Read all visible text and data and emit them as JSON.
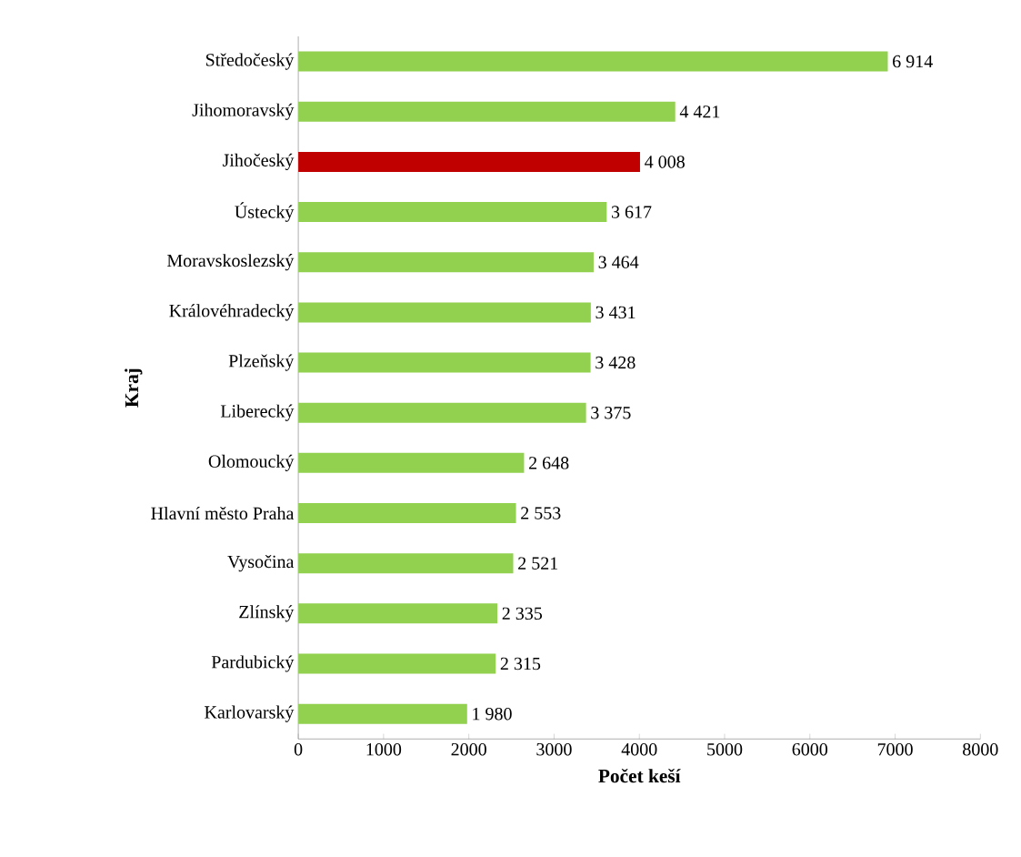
{
  "chart_data": {
    "type": "bar",
    "orientation": "horizontal",
    "xlabel": "Počet keší",
    "ylabel": "Kraj",
    "categories": [
      "Středočeský",
      "Jihomoravský",
      "Jihočeský",
      "Ústecký",
      "Moravskoslezský",
      "Královéhradecký",
      "Plzeňský",
      "Liberecký",
      "Olomoucký",
      "Hlavní město Praha",
      "Vysočina",
      "Zlínský",
      "Pardubický",
      "Karlovarský"
    ],
    "values": [
      6914,
      4421,
      4008,
      3617,
      3464,
      3431,
      3428,
      3375,
      2648,
      2553,
      2521,
      2335,
      2315,
      1980
    ],
    "value_labels": [
      "6 914",
      "4 421",
      "4 008",
      "3 617",
      "3 464",
      "3 431",
      "3 428",
      "3 375",
      "2 648",
      "2 553",
      "2 521",
      "2 335",
      "2 315",
      "1 980"
    ],
    "colors": [
      "#92d050",
      "#92d050",
      "#c00000",
      "#92d050",
      "#92d050",
      "#92d050",
      "#92d050",
      "#92d050",
      "#92d050",
      "#92d050",
      "#92d050",
      "#92d050",
      "#92d050",
      "#92d050"
    ],
    "xlim": [
      0,
      8000
    ],
    "xticks": [
      0,
      1000,
      2000,
      3000,
      4000,
      5000,
      6000,
      7000,
      8000
    ]
  }
}
